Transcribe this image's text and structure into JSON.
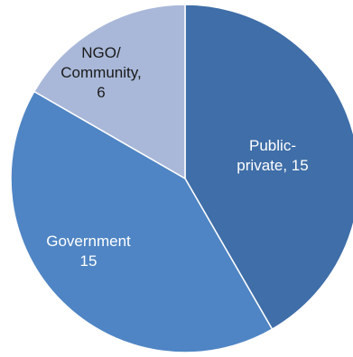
{
  "chart_data": {
    "type": "pie",
    "slices": [
      {
        "label_lines": [
          "Public-",
          "private, 15"
        ],
        "value": 15,
        "color": "#3f6ea8",
        "label_color": "#ffffff"
      },
      {
        "label_lines": [
          "Government",
          "15"
        ],
        "value": 15,
        "color": "#4f85c4",
        "label_color": "#ffffff"
      },
      {
        "label_lines": [
          "NGO/",
          "Community,",
          "6"
        ],
        "value": 6,
        "color": "#a9b8d9",
        "label_color": "#1a1a1a"
      }
    ],
    "start_angle_deg": 0,
    "direction": "clockwise",
    "legend": "none",
    "slice_border_color": "#ffffff"
  }
}
